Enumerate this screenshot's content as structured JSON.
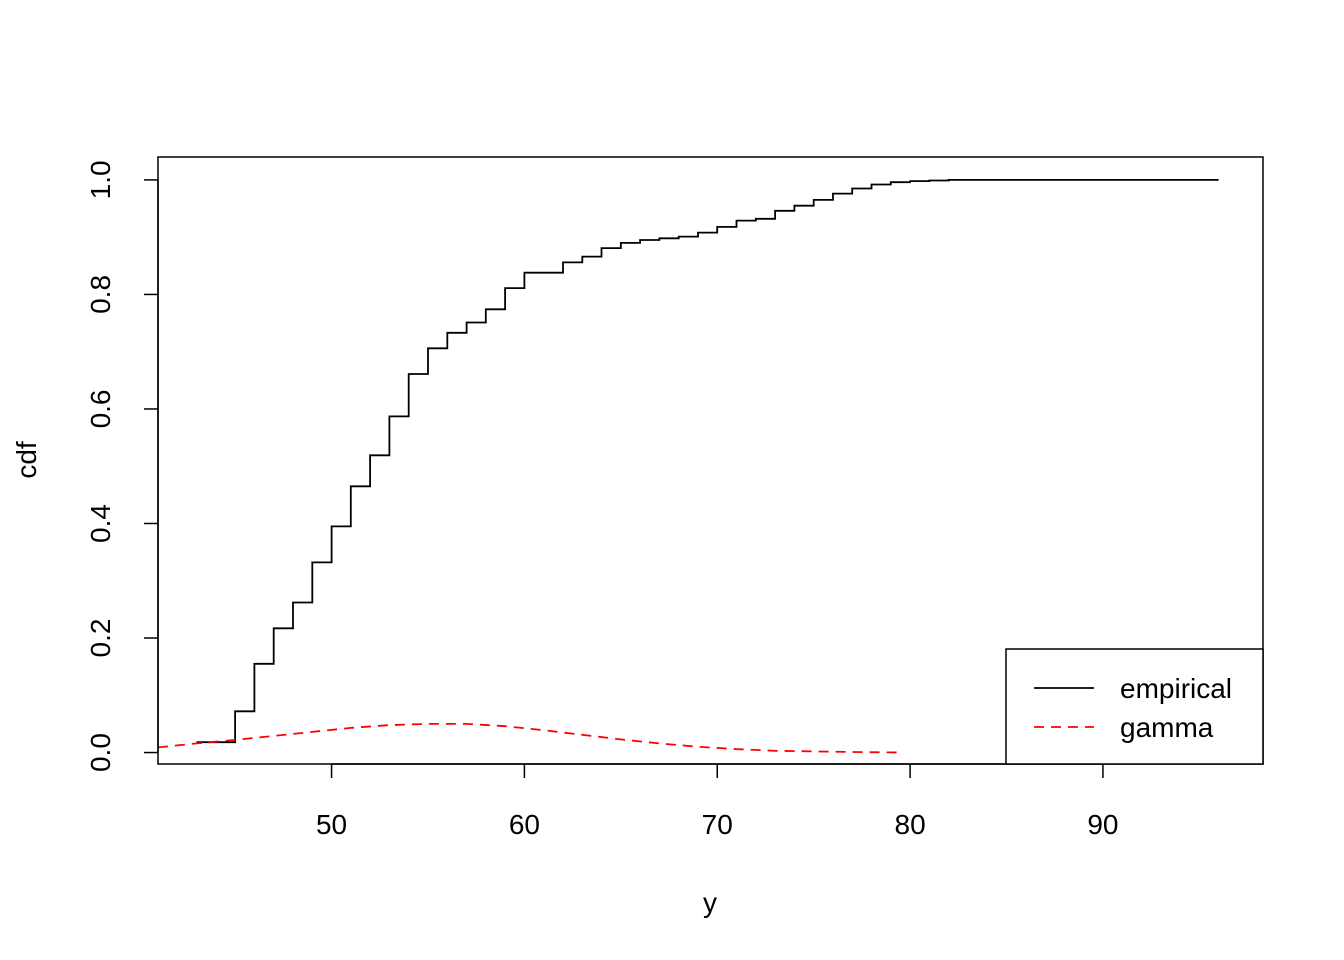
{
  "chart_data": {
    "type": "line",
    "title": "",
    "xlabel": "y",
    "ylabel": "cdf",
    "xlim": [
      41,
      98.3
    ],
    "ylim": [
      -0.02,
      1.04
    ],
    "x_ticks": [
      50,
      60,
      70,
      80,
      90
    ],
    "x_tick_labels": [
      "50",
      "60",
      "70",
      "80",
      "90"
    ],
    "y_ticks": [
      0.0,
      0.2,
      0.4,
      0.6,
      0.8,
      1.0
    ],
    "y_tick_labels": [
      "0.0",
      "0.2",
      "0.4",
      "0.6",
      "0.8",
      "1.0"
    ],
    "grid": false,
    "legend_position": "bottom-right",
    "series": [
      {
        "name": "empirical",
        "style": "step",
        "color": "#000000",
        "dash": "solid",
        "x": [
          43,
          45,
          46,
          47,
          48,
          49,
          50,
          51,
          52,
          53,
          54,
          55,
          56,
          57,
          58,
          59,
          60,
          62,
          63,
          64,
          65,
          66,
          67,
          68,
          69,
          70,
          71,
          72,
          73,
          74,
          75,
          76,
          77,
          78,
          79,
          80,
          81,
          82,
          83,
          84,
          85,
          96
        ],
        "y": [
          0.018,
          0.072,
          0.155,
          0.217,
          0.262,
          0.332,
          0.395,
          0.465,
          0.519,
          0.587,
          0.661,
          0.706,
          0.733,
          0.751,
          0.774,
          0.811,
          0.838,
          0.856,
          0.866,
          0.881,
          0.89,
          0.895,
          0.898,
          0.901,
          0.908,
          0.918,
          0.929,
          0.932,
          0.946,
          0.955,
          0.965,
          0.976,
          0.985,
          0.992,
          0.996,
          0.998,
          0.999,
          1.0,
          1.0,
          1.0,
          1.0,
          1.0
        ]
      },
      {
        "name": "gamma",
        "style": "line",
        "color": "#ff0000",
        "dash": "dashed",
        "x": [
          41,
          43,
          45,
          47,
          49,
          51,
          53,
          55,
          57,
          59,
          61,
          63,
          65,
          67,
          69,
          71,
          73,
          75,
          77,
          79.5
        ],
        "y": [
          0.009,
          0.016,
          0.022,
          0.029,
          0.036,
          0.043,
          0.048,
          0.05,
          0.05,
          0.046,
          0.039,
          0.031,
          0.023,
          0.016,
          0.01,
          0.006,
          0.003,
          0.002,
          0.001,
          0.0
        ]
      }
    ]
  }
}
